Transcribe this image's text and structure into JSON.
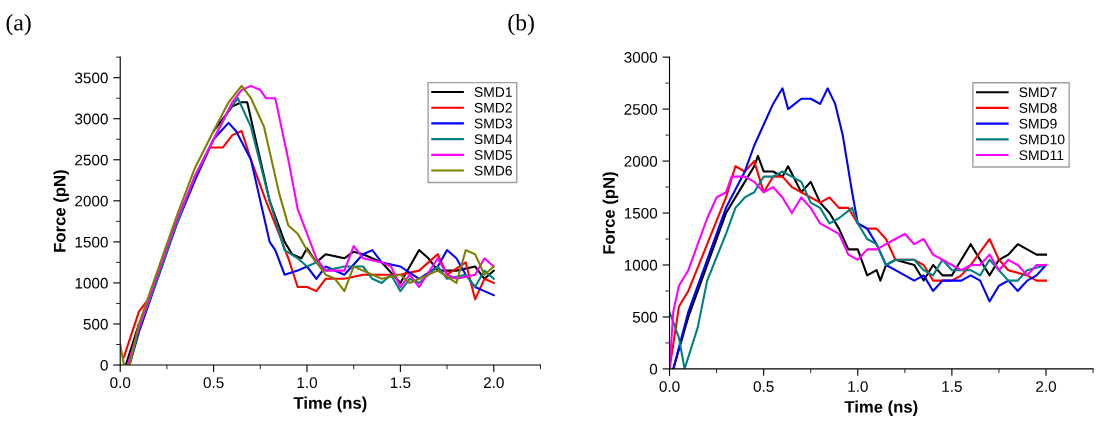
{
  "chart_data": [
    {
      "type": "line",
      "xlabel": "Time (ns)",
      "ylabel": "Force (pN)",
      "annotations": [
        "(a)"
      ],
      "xlim": [
        0,
        2.25
      ],
      "ylim": [
        0,
        3750
      ],
      "xticks": [
        {
          "value": 0,
          "label": "0.0"
        },
        {
          "value": 0.5,
          "label": "0.5"
        },
        {
          "value": 1,
          "label": "1.0"
        },
        {
          "value": 1.5,
          "label": "1.5"
        },
        {
          "value": 2,
          "label": "2.0"
        }
      ],
      "yticks": [
        0,
        500,
        1000,
        1500,
        2000,
        2500,
        3000,
        3500
      ],
      "legend": "top right",
      "grid": false,
      "marker": "none",
      "line_style": "solid",
      "series": [
        {
          "name": "SMD1",
          "color": "#000000",
          "x": [
            0.03,
            0.1,
            0.2,
            0.3,
            0.4,
            0.5,
            0.6,
            0.65,
            0.68,
            0.72,
            0.8,
            0.88,
            0.92,
            0.97,
            1.0,
            1.05,
            1.1,
            1.2,
            1.25,
            1.3,
            1.4,
            1.5,
            1.55,
            1.6,
            1.65,
            1.7,
            1.8,
            1.9,
            1.95,
            2.0
          ],
          "values": [
            0,
            500,
            null,
            null,
            null,
            2850,
            3150,
            3200,
            3200,
            2800,
            2000,
            1500,
            1350,
            1300,
            1420,
            1250,
            1350,
            1300,
            1380,
            1350,
            1250,
            1000,
            1200,
            1400,
            1300,
            1150,
            1150,
            1200,
            1050,
            1150
          ]
        },
        {
          "name": "SMD2",
          "color": "#ff0000",
          "x": [
            0.02,
            0.1,
            0.15,
            0.2,
            0.3,
            0.4,
            0.48,
            0.55,
            0.6,
            0.65,
            0.7,
            0.78,
            0.85,
            0.9,
            0.95,
            1.0,
            1.05,
            1.1,
            1.2,
            1.3,
            1.4,
            1.5,
            1.6,
            1.7,
            1.75,
            1.85,
            1.9,
            1.95,
            2.0
          ],
          "values": [
            100,
            650,
            800,
            1100,
            1700,
            2300,
            2650,
            2650,
            2800,
            2850,
            2500,
            2000,
            1600,
            1300,
            950,
            950,
            900,
            1050,
            1050,
            1100,
            1100,
            1100,
            1150,
            1350,
            1100,
            1250,
            800,
            1050,
            1000
          ]
        },
        {
          "name": "SMD3",
          "color": "#0000ff",
          "x": [
            0.05,
            0.1,
            0.2,
            0.3,
            0.4,
            0.5,
            0.58,
            0.62,
            0.7,
            0.77,
            0.8,
            0.83,
            0.88,
            0.95,
            1.0,
            1.05,
            1.1,
            1.2,
            1.3,
            1.35,
            1.4,
            1.5,
            1.6,
            1.7,
            1.75,
            1.8,
            1.85,
            1.9,
            1.95,
            2.0
          ],
          "values": [
            0,
            400,
            1050,
            1700,
            2250,
            2750,
            2950,
            2850,
            2500,
            1800,
            1500,
            1400,
            1100,
            1150,
            1200,
            1050,
            1200,
            1100,
            1350,
            1400,
            1250,
            1200,
            1050,
            1200,
            1400,
            1300,
            1100,
            950,
            900,
            850
          ]
        },
        {
          "name": "SMD4",
          "color": "#008080",
          "x": [
            0.05,
            0.1,
            0.2,
            0.3,
            0.4,
            0.5,
            0.58,
            0.63,
            0.7,
            0.8,
            0.88,
            0.95,
            1.0,
            1.05,
            1.1,
            1.2,
            1.3,
            1.35,
            1.4,
            1.45,
            1.5,
            1.55,
            1.6,
            1.7,
            1.75,
            1.85,
            1.9,
            1.95,
            2.0
          ],
          "values": [
            0,
            450,
            1050,
            1700,
            2300,
            2750,
            3100,
            3250,
            2900,
            2000,
            1400,
            1300,
            1200,
            1250,
            1150,
            1200,
            1200,
            1050,
            1000,
            1100,
            900,
            1050,
            1000,
            1200,
            1050,
            1100,
            950,
            1150,
            1050
          ]
        },
        {
          "name": "SMD5",
          "color": "#ff00ff",
          "x": [
            0.04,
            0.1,
            0.2,
            0.3,
            0.4,
            0.5,
            0.6,
            0.65,
            0.7,
            0.75,
            0.78,
            0.83,
            0.9,
            0.95,
            1.0,
            1.05,
            1.1,
            1.2,
            1.25,
            1.3,
            1.4,
            1.45,
            1.5,
            1.55,
            1.6,
            1.7,
            1.75,
            1.8,
            1.9,
            1.95,
            2.0
          ],
          "values": [
            0,
            450,
            1100,
            1750,
            2300,
            2750,
            3200,
            3350,
            3400,
            3350,
            3250,
            3250,
            2500,
            1900,
            1600,
            1300,
            1150,
            1150,
            1450,
            1300,
            1250,
            1200,
            950,
            1100,
            950,
            1300,
            1100,
            1050,
            1100,
            1300,
            1200
          ]
        },
        {
          "name": "SMD6",
          "color": "#808000",
          "x": [
            0.0,
            0.02,
            0.05,
            0.1,
            0.2,
            0.3,
            0.4,
            0.5,
            0.58,
            0.65,
            0.7,
            0.77,
            0.85,
            0.9,
            0.95,
            1.0,
            1.1,
            1.15,
            1.2,
            1.25,
            1.3,
            1.4,
            1.5,
            1.55,
            1.6,
            1.7,
            1.8,
            1.85,
            1.9,
            1.95,
            2.0
          ],
          "values": [
            250,
            0,
            0,
            500,
            1150,
            1800,
            2400,
            2850,
            3200,
            3400,
            3250,
            2900,
            2100,
            1700,
            1600,
            1400,
            1100,
            1050,
            900,
            1200,
            1150,
            1050,
            1100,
            1000,
            1050,
            1150,
            1000,
            1400,
            1350,
            1100,
            1200
          ]
        }
      ]
    },
    {
      "type": "line",
      "xlabel": "Time (ns)",
      "ylabel": "Force (pN)",
      "annotations": [
        "(b)"
      ],
      "xlim": [
        0,
        2.25
      ],
      "ylim": [
        0,
        3000
      ],
      "xticks": [
        {
          "value": 0,
          "label": "0.0"
        },
        {
          "value": 0.5,
          "label": "0.5"
        },
        {
          "value": 1,
          "label": "1.0"
        },
        {
          "value": 1.5,
          "label": "1.5"
        },
        {
          "value": 2,
          "label": "2.0"
        }
      ],
      "yticks": [
        0,
        500,
        1000,
        1500,
        2000,
        2500,
        3000
      ],
      "legend": "top right",
      "grid": false,
      "marker": "none",
      "line_style": "solid",
      "series": [
        {
          "name": "SMD7",
          "color": "#000000",
          "x": [
            0.02,
            0.1,
            0.2,
            0.3,
            0.4,
            0.45,
            0.47,
            0.5,
            0.55,
            0.6,
            0.63,
            0.7,
            0.75,
            0.8,
            0.85,
            0.9,
            0.95,
            1.0,
            1.05,
            1.1,
            1.12,
            1.15,
            1.2,
            1.3,
            1.35,
            1.4,
            1.45,
            1.5,
            1.55,
            1.6,
            1.65,
            1.7,
            1.75,
            1.8,
            1.85,
            1.9,
            1.95,
            2.0
          ],
          "values": [
            0,
            500,
            1000,
            1500,
            1800,
            1950,
            2050,
            1900,
            1900,
            1850,
            1950,
            1700,
            1800,
            1600,
            1500,
            1350,
            1150,
            1150,
            900,
            950,
            850,
            1000,
            1050,
            1000,
            850,
            1000,
            900,
            900,
            1050,
            1200,
            1050,
            900,
            1050,
            1100,
            1200,
            1150,
            1100,
            1100
          ]
        },
        {
          "name": "SMD8",
          "color": "#ff0000",
          "x": [
            0.0,
            0.05,
            0.1,
            0.2,
            0.3,
            0.35,
            0.4,
            0.45,
            0.5,
            0.55,
            0.6,
            0.65,
            0.7,
            0.8,
            0.85,
            0.9,
            0.95,
            1.0,
            1.05,
            1.1,
            1.15,
            1.2,
            1.3,
            1.35,
            1.4,
            1.5,
            1.55,
            1.6,
            1.7,
            1.75,
            1.8,
            1.9,
            1.95,
            2.0
          ],
          "values": [
            0,
            600,
            750,
            1200,
            1650,
            1950,
            1900,
            2000,
            1700,
            1850,
            1850,
            1750,
            1700,
            1600,
            1650,
            1550,
            1550,
            1400,
            1350,
            1350,
            1250,
            1050,
            1050,
            1000,
            850,
            850,
            900,
            1000,
            1250,
            1050,
            950,
            900,
            850,
            850
          ]
        },
        {
          "name": "SMD9",
          "color": "#0000ff",
          "x": [
            0.02,
            0.1,
            0.2,
            0.3,
            0.4,
            0.45,
            0.5,
            0.55,
            0.6,
            0.63,
            0.7,
            0.75,
            0.8,
            0.84,
            0.88,
            0.92,
            0.97,
            1.0,
            1.05,
            1.1,
            1.15,
            1.2,
            1.3,
            1.35,
            1.4,
            1.45,
            1.55,
            1.6,
            1.65,
            1.7,
            1.75,
            1.8,
            1.85,
            1.9,
            1.95,
            2.0
          ],
          "values": [
            0,
            550,
            1050,
            1550,
            1900,
            2150,
            2350,
            2550,
            2700,
            2500,
            2600,
            2600,
            2550,
            2700,
            2550,
            2250,
            1700,
            1400,
            1350,
            1200,
            1000,
            950,
            850,
            900,
            750,
            850,
            850,
            900,
            850,
            650,
            800,
            850,
            750,
            850,
            900,
            1000
          ]
        },
        {
          "name": "SMD10",
          "color": "#008080",
          "x": [
            0.0,
            0.05,
            0.08,
            0.15,
            0.2,
            0.3,
            0.35,
            0.4,
            0.45,
            0.5,
            0.55,
            0.6,
            0.65,
            0.7,
            0.75,
            0.8,
            0.85,
            0.9,
            0.97,
            1.0,
            1.05,
            1.1,
            1.15,
            1.2,
            1.3,
            1.35,
            1.4,
            1.45,
            1.5,
            1.6,
            1.65,
            1.7,
            1.75,
            1.8,
            1.85,
            1.9,
            2.0
          ],
          "values": [
            550,
            300,
            0,
            400,
            850,
            1300,
            1550,
            1650,
            1700,
            1850,
            1850,
            1900,
            1850,
            1800,
            1600,
            1550,
            1400,
            1450,
            1550,
            1400,
            1250,
            1200,
            1000,
            1050,
            1050,
            950,
            900,
            1050,
            950,
            950,
            900,
            1050,
            950,
            850,
            850,
            950,
            1000
          ]
        },
        {
          "name": "SMD11",
          "color": "#ff00ff",
          "x": [
            0.0,
            0.02,
            0.05,
            0.1,
            0.15,
            0.2,
            0.25,
            0.3,
            0.33,
            0.4,
            0.45,
            0.5,
            0.55,
            0.6,
            0.65,
            0.7,
            0.75,
            0.8,
            0.85,
            0.9,
            0.95,
            1.0,
            1.05,
            1.1,
            1.15,
            1.2,
            1.25,
            1.3,
            1.35,
            1.4,
            1.5,
            1.55,
            1.6,
            1.65,
            1.7,
            1.75,
            1.8,
            1.85,
            1.9,
            1.95,
            2.0
          ],
          "values": [
            0,
            550,
            800,
            950,
            1200,
            1450,
            1650,
            1700,
            1850,
            1850,
            1800,
            1700,
            1750,
            1650,
            1500,
            1650,
            1550,
            1400,
            1350,
            1300,
            1100,
            1050,
            1150,
            1150,
            1200,
            1250,
            1300,
            1200,
            1250,
            1100,
            1000,
            950,
            1000,
            1000,
            1100,
            950,
            1050,
            1000,
            900,
            1000,
            1000
          ]
        }
      ]
    }
  ]
}
